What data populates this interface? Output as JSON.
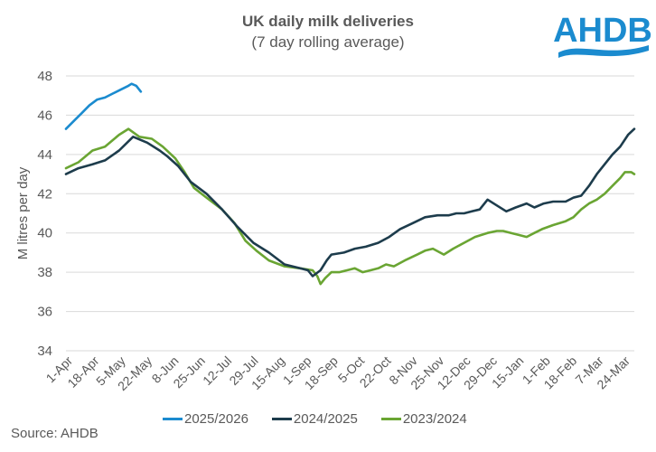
{
  "logo": {
    "text": "AHDB",
    "color": "#1b8bcf"
  },
  "source": "Source: AHDB",
  "chart_data": {
    "type": "line",
    "title": "UK daily milk deliveries",
    "subtitle": "(7 day rolling average)",
    "xlabel": "",
    "ylabel": "M litres per day",
    "ylim": [
      34,
      48
    ],
    "yticks": [
      "34",
      "36",
      "38",
      "40",
      "42",
      "44",
      "46",
      "48"
    ],
    "xlim_days": [
      0,
      364
    ],
    "grid": "horizontal",
    "legend_position": "bottom",
    "x_tick_labels": [
      "1-Apr",
      "18-Apr",
      "5-May",
      "22-May",
      "8-Jun",
      "25-Jun",
      "12-Jul",
      "29-Jul",
      "15-Aug",
      "1-Sep",
      "18-Sep",
      "5-Oct",
      "22-Oct",
      "8-Nov",
      "25-Nov",
      "12-Dec",
      "29-Dec",
      "15-Jan",
      "1-Feb",
      "18-Feb",
      "7-Mar",
      "24-Mar"
    ],
    "x_tick_days": [
      0,
      17,
      34,
      51,
      68,
      85,
      102,
      119,
      136,
      153,
      170,
      187,
      204,
      221,
      238,
      255,
      272,
      289,
      306,
      323,
      340,
      357
    ],
    "series": [
      {
        "name": "2025/2026",
        "color": "#1b8bcf",
        "days": [
          0,
          5,
          10,
          15,
          20,
          25,
          30,
          35,
          40,
          42,
          45,
          48
        ],
        "values": [
          45.3,
          45.7,
          46.1,
          46.5,
          46.8,
          46.9,
          47.1,
          47.3,
          47.5,
          47.6,
          47.5,
          47.2
        ]
      },
      {
        "name": "2024/2025",
        "color": "#1d3c4c",
        "days": [
          0,
          8,
          17,
          25,
          34,
          43,
          52,
          60,
          65,
          72,
          80,
          90,
          100,
          110,
          120,
          130,
          140,
          150,
          155,
          158,
          163,
          167,
          170,
          178,
          185,
          192,
          200,
          207,
          214,
          222,
          230,
          238,
          245,
          250,
          255,
          260,
          265,
          270,
          276,
          282,
          288,
          295,
          300,
          306,
          312,
          320,
          325,
          330,
          335,
          340,
          345,
          350,
          355,
          360,
          364
        ],
        "values": [
          43.0,
          43.3,
          43.5,
          43.7,
          44.2,
          44.9,
          44.6,
          44.2,
          43.9,
          43.4,
          42.6,
          42.0,
          41.2,
          40.3,
          39.5,
          39.0,
          38.4,
          38.2,
          38.1,
          37.8,
          38.1,
          38.6,
          38.9,
          39.0,
          39.2,
          39.3,
          39.5,
          39.8,
          40.2,
          40.5,
          40.8,
          40.9,
          40.9,
          41.0,
          41.0,
          41.1,
          41.2,
          41.7,
          41.4,
          41.1,
          41.3,
          41.5,
          41.3,
          41.5,
          41.6,
          41.6,
          41.8,
          41.9,
          42.4,
          43.0,
          43.5,
          44.0,
          44.4,
          45.0,
          45.3
        ]
      },
      {
        "name": "2023/2024",
        "color": "#6aa533",
        "days": [
          0,
          8,
          17,
          25,
          34,
          40,
          47,
          55,
          62,
          70,
          76,
          82,
          90,
          100,
          108,
          115,
          122,
          130,
          140,
          150,
          158,
          161,
          163,
          166,
          170,
          175,
          180,
          185,
          190,
          195,
          200,
          205,
          210,
          217,
          225,
          230,
          235,
          242,
          248,
          255,
          262,
          270,
          276,
          280,
          285,
          290,
          295,
          300,
          305,
          312,
          320,
          325,
          330,
          335,
          340,
          345,
          350,
          355,
          358,
          362,
          364
        ],
        "values": [
          43.3,
          43.6,
          44.2,
          44.4,
          45.0,
          45.3,
          44.9,
          44.8,
          44.4,
          43.8,
          43.1,
          42.3,
          41.8,
          41.2,
          40.5,
          39.6,
          39.1,
          38.6,
          38.3,
          38.2,
          38.1,
          37.8,
          37.4,
          37.7,
          38.0,
          38.0,
          38.1,
          38.2,
          38.0,
          38.1,
          38.2,
          38.4,
          38.3,
          38.6,
          38.9,
          39.1,
          39.2,
          38.9,
          39.2,
          39.5,
          39.8,
          40.0,
          40.1,
          40.1,
          40.0,
          39.9,
          39.8,
          40.0,
          40.2,
          40.4,
          40.6,
          40.8,
          41.2,
          41.5,
          41.7,
          42.0,
          42.4,
          42.8,
          43.1,
          43.1,
          43.0
        ]
      }
    ]
  }
}
